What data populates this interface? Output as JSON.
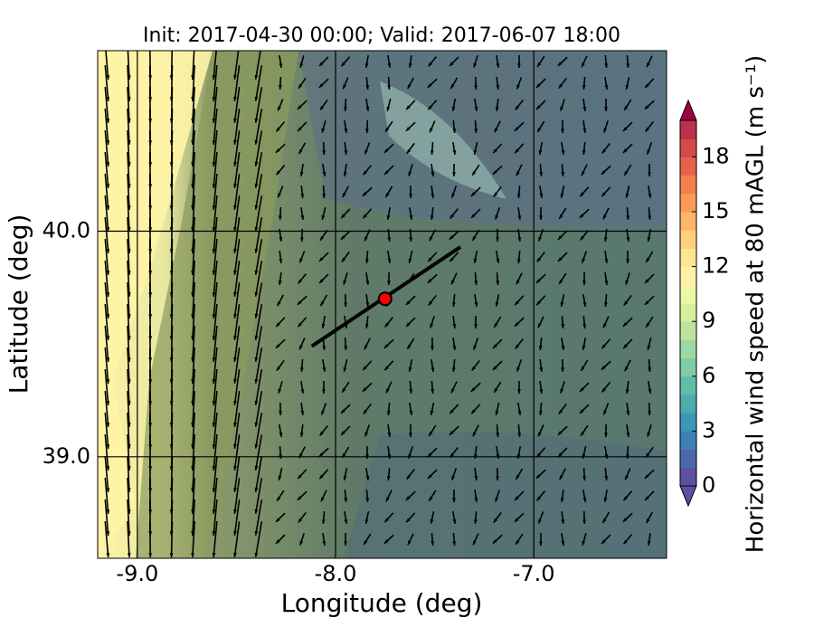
{
  "chart_data": {
    "type": "map",
    "title": "Init: 2017-04-30 00:00; Valid: 2017-06-07 18:00",
    "xlabel": "Longitude (deg)",
    "ylabel": "Latitude (deg)",
    "xlim": [
      -9.2,
      -6.33
    ],
    "ylim": [
      38.55,
      40.8
    ],
    "xticks": [
      {
        "value": -9,
        "label": "-9.0"
      },
      {
        "value": -8,
        "label": "-8.0"
      },
      {
        "value": -7,
        "label": "-7.0"
      }
    ],
    "yticks": [
      {
        "value": 39,
        "label": "39.0"
      },
      {
        "value": 40,
        "label": "40.0"
      }
    ],
    "grid": true,
    "transect": {
      "x": [
        -8.12,
        -7.37
      ],
      "y": [
        39.49,
        39.93
      ],
      "color": "#000000"
    },
    "point": {
      "x": -7.75,
      "y": 39.7,
      "color": "#ff0000"
    },
    "colorbar": {
      "label": "Horizontal wind speed at 80 mAGL (m s⁻¹)",
      "lim": [
        0,
        20
      ],
      "ticks": [
        0,
        3,
        6,
        9,
        12,
        15,
        18
      ],
      "colors": [
        "#5e4fa2",
        "#4d67ad",
        "#3f7fb8",
        "#3b96b8",
        "#4cacad",
        "#62bda8",
        "#7ecba4",
        "#9dd8a4",
        "#bce4a0",
        "#d7ef9b",
        "#eef8a4",
        "#fcf2a8",
        "#fee593",
        "#fecf7c",
        "#fdb566",
        "#f99b56",
        "#f4804c",
        "#e8624b",
        "#d6484a",
        "#be2f49"
      ],
      "under": "#5e4fa2",
      "over": "#9e0142"
    }
  }
}
